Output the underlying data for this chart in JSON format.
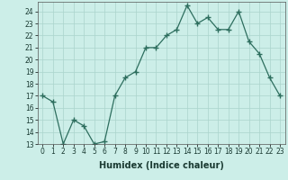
{
  "x": [
    0,
    1,
    2,
    3,
    4,
    5,
    6,
    7,
    8,
    9,
    10,
    11,
    12,
    13,
    14,
    15,
    16,
    17,
    18,
    19,
    20,
    21,
    22,
    23
  ],
  "y": [
    17,
    16.5,
    13,
    15,
    14.5,
    13,
    13.2,
    17,
    18.5,
    19,
    21,
    21,
    22,
    22.5,
    24.5,
    23,
    23.5,
    22.5,
    22.5,
    24,
    21.5,
    20.5,
    18.5,
    17
  ],
  "xlabel": "Humidex (Indice chaleur)",
  "xlim": [
    -0.5,
    23.5
  ],
  "ylim": [
    13,
    24.8
  ],
  "yticks": [
    13,
    14,
    15,
    16,
    17,
    18,
    19,
    20,
    21,
    22,
    23,
    24
  ],
  "xticks": [
    0,
    1,
    2,
    3,
    4,
    5,
    6,
    7,
    8,
    9,
    10,
    11,
    12,
    13,
    14,
    15,
    16,
    17,
    18,
    19,
    20,
    21,
    22,
    23
  ],
  "line_color": "#2d6e5e",
  "marker": "+",
  "marker_size": 4,
  "marker_lw": 1.0,
  "line_width": 0.9,
  "bg_color": "#cceee8",
  "grid_color": "#aad4cc",
  "tick_fontsize": 5.5,
  "xlabel_fontsize": 7.0
}
